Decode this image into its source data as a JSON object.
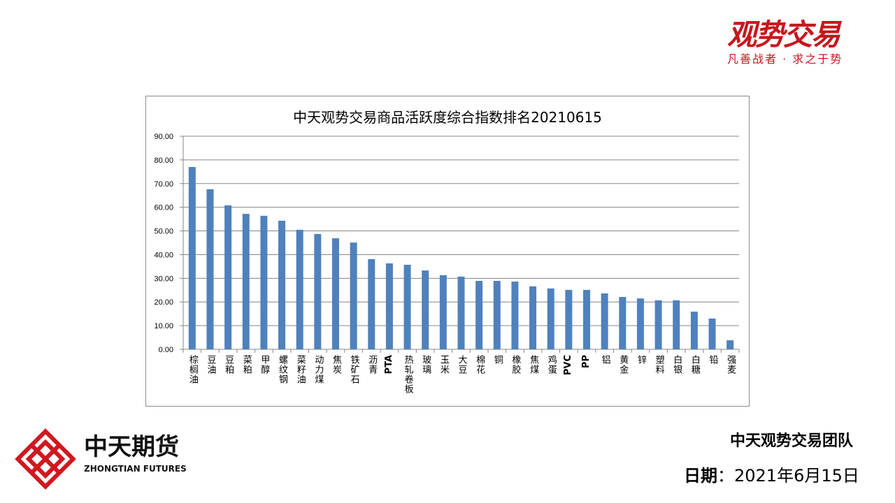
{
  "header": {
    "brand_logo_text": "观势交易",
    "brand_slogan": "凡善战者 · 求之于势"
  },
  "footer": {
    "company_logo_cn": "中天期货",
    "company_logo_en": "ZHONGTIAN FUTURES",
    "team": "中天观势交易团队",
    "date_label": "日期",
    "date_sep": "：",
    "date_value": "2021年6月15日"
  },
  "colors": {
    "bar": "#4f81bd",
    "brand_red": "#c8161d",
    "grid": "#868686"
  },
  "chart_data": {
    "type": "bar",
    "title": "中天观势交易商品活跃度综合指数排名20210615",
    "xlabel": "",
    "ylabel": "",
    "ylim": [
      0,
      90
    ],
    "yticks": [
      "0.00",
      "10.00",
      "20.00",
      "30.00",
      "40.00",
      "50.00",
      "60.00",
      "70.00",
      "80.00",
      "90.00"
    ],
    "grid": true,
    "legend": "none",
    "categories": [
      "棕榈油",
      "豆油",
      "豆粕",
      "菜粕",
      "甲醇",
      "螺纹钢",
      "菜籽油",
      "动力煤",
      "焦炭",
      "铁矿石",
      "沥青",
      "PTA",
      "热轧卷板",
      "玻璃",
      "玉米",
      "大豆",
      "棉花",
      "铜",
      "橡胶",
      "焦煤",
      "鸡蛋",
      "PVC",
      "PP",
      "铝",
      "黄金",
      "锌",
      "塑料",
      "白银",
      "白糖",
      "铅",
      "强麦"
    ],
    "values": [
      77.0,
      67.6,
      60.8,
      57.2,
      56.4,
      54.3,
      50.5,
      48.7,
      46.9,
      45.1,
      38.1,
      36.3,
      35.7,
      33.3,
      31.3,
      30.7,
      28.9,
      28.9,
      28.6,
      26.6,
      25.7,
      25.1,
      25.1,
      23.6,
      22.1,
      21.5,
      20.7,
      20.7,
      15.9,
      13.0,
      3.8
    ]
  }
}
